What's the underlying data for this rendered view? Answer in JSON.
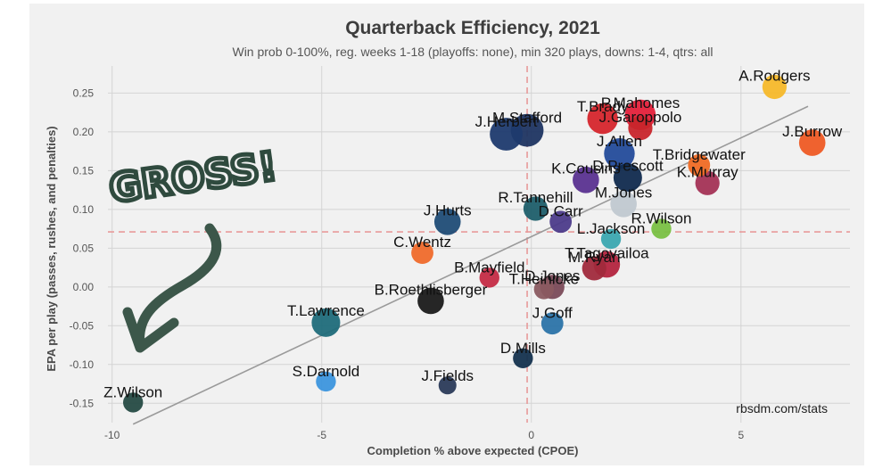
{
  "colors": {
    "background": "#f1f1f1",
    "grid": "#d4d4d4",
    "reference_line": "#e89a9a",
    "trend_line": "#9a9a9a",
    "annotation": "#3c574a"
  },
  "annotation_text": "GROSS!",
  "credit": "rbsdm.com/stats",
  "chart_data": {
    "type": "scatter",
    "title": "Quarterback Efficiency, 2021",
    "subtitle": "Win prob 0-100%, reg. weeks 1-18 (playoffs: none), min 320 plays, downs: 1-4, qtrs: all",
    "xlabel": "Completion % above expected (CPOE)",
    "ylabel": "EPA per play (passes, rushes, and penalties)",
    "xlim": [
      -10.1,
      7.6
    ],
    "ylim": [
      -0.175,
      0.285
    ],
    "x_ticks": [
      -10,
      -5,
      0,
      5
    ],
    "y_ticks": [
      0.25,
      0.2,
      0.15,
      0.1,
      0.05,
      0.0,
      -0.05,
      -0.1,
      -0.15
    ],
    "x_tick_labels": [
      "-10",
      "-5",
      "0",
      "5"
    ],
    "y_tick_labels": [
      "0.25",
      "0.20",
      "0.15",
      "0.10",
      "0.05",
      "0.00",
      "-0.05",
      "-0.10",
      "-0.15"
    ],
    "grid": true,
    "reference_lines": {
      "x": -0.1,
      "y": 0.071
    },
    "trend_line": {
      "x": [
        -9.5,
        6.6
      ],
      "y": [
        -0.177,
        0.233
      ]
    },
    "points": [
      {
        "name": "A.Rodgers",
        "x": 5.8,
        "y": 0.258,
        "size": 1.0,
        "color": "#f5b82a"
      },
      {
        "name": "T.Brady",
        "x": 1.7,
        "y": 0.217,
        "size": 1.3,
        "color": "#d5252c"
      },
      {
        "name": "P.Mahomes",
        "x": 2.6,
        "y": 0.222,
        "size": 1.3,
        "color": "#e4203a"
      },
      {
        "name": "M.Stafford",
        "x": -0.1,
        "y": 0.202,
        "size": 1.4,
        "color": "#1e3461"
      },
      {
        "name": "J.Herbert",
        "x": -0.6,
        "y": 0.197,
        "size": 1.4,
        "color": "#1e3a6e"
      },
      {
        "name": "J.Burrow",
        "x": 6.7,
        "y": 0.186,
        "size": 1.1,
        "color": "#ee5a24"
      },
      {
        "name": "J.Allen",
        "x": 2.1,
        "y": 0.172,
        "size": 1.3,
        "color": "#234b9a"
      },
      {
        "name": "J.Garoppolo",
        "x": 2.6,
        "y": 0.205,
        "size": 1.0,
        "color": "#c8252b"
      },
      {
        "name": "D.Prescott",
        "x": 2.3,
        "y": 0.141,
        "size": 1.2,
        "color": "#102a4e"
      },
      {
        "name": "T.Bridgewater",
        "x": 4.0,
        "y": 0.157,
        "size": 0.9,
        "color": "#ef6a24"
      },
      {
        "name": "K.Cousins",
        "x": 1.3,
        "y": 0.138,
        "size": 1.1,
        "color": "#5a3190"
      },
      {
        "name": "R.Tannehill",
        "x": 0.1,
        "y": 0.101,
        "size": 1.0,
        "color": "#1d5e6a"
      },
      {
        "name": "M.Jones",
        "x": 2.2,
        "y": 0.107,
        "size": 1.1,
        "color": "#c0c8d0"
      },
      {
        "name": "K.Murray",
        "x": 4.2,
        "y": 0.134,
        "size": 1.0,
        "color": "#a33255"
      },
      {
        "name": "J.Hurts",
        "x": -2.0,
        "y": 0.084,
        "size": 1.1,
        "color": "#1f4c76"
      },
      {
        "name": "D.Carr",
        "x": 0.7,
        "y": 0.084,
        "size": 0.9,
        "color": "#4c3b8a"
      },
      {
        "name": "R.Wilson",
        "x": 3.1,
        "y": 0.075,
        "size": 0.8,
        "color": "#79c043"
      },
      {
        "name": "C.Wentz",
        "x": -2.6,
        "y": 0.044,
        "size": 0.9,
        "color": "#ef6a2b"
      },
      {
        "name": "L.Jackson",
        "x": 1.9,
        "y": 0.062,
        "size": 0.8,
        "color": "#3ba6b0"
      },
      {
        "name": "T.Tagovailoa",
        "x": 1.8,
        "y": 0.029,
        "size": 1.1,
        "color": "#b3243e"
      },
      {
        "name": "M.Ryan",
        "x": 1.5,
        "y": 0.024,
        "size": 1.0,
        "color": "#a02a3c"
      },
      {
        "name": "B.Mayfield",
        "x": -1.0,
        "y": 0.012,
        "size": 0.8,
        "color": "#c42b45"
      },
      {
        "name": "D.Jones",
        "x": 0.5,
        "y": 0.0,
        "size": 1.0,
        "color": "#7a4a58"
      },
      {
        "name": "T.Heinicke",
        "x": 0.3,
        "y": -0.003,
        "size": 0.8,
        "color": "#8a5a60"
      },
      {
        "name": "B.Roethlisberger",
        "x": -2.4,
        "y": -0.018,
        "size": 1.1,
        "color": "#1a1a1a"
      },
      {
        "name": "J.Goff",
        "x": 0.5,
        "y": -0.047,
        "size": 0.9,
        "color": "#2b73a8"
      },
      {
        "name": "T.Lawrence",
        "x": -4.9,
        "y": -0.046,
        "size": 1.2,
        "color": "#1f6b7a"
      },
      {
        "name": "D.Mills",
        "x": -0.2,
        "y": -0.092,
        "size": 0.8,
        "color": "#14324e"
      },
      {
        "name": "J.Fields",
        "x": -2.0,
        "y": -0.127,
        "size": 0.7,
        "color": "#2a3a58"
      },
      {
        "name": "S.Darnold",
        "x": -4.9,
        "y": -0.122,
        "size": 0.8,
        "color": "#3c95dd"
      },
      {
        "name": "Z.Wilson",
        "x": -9.5,
        "y": -0.149,
        "size": 0.8,
        "color": "#254a43"
      }
    ]
  }
}
